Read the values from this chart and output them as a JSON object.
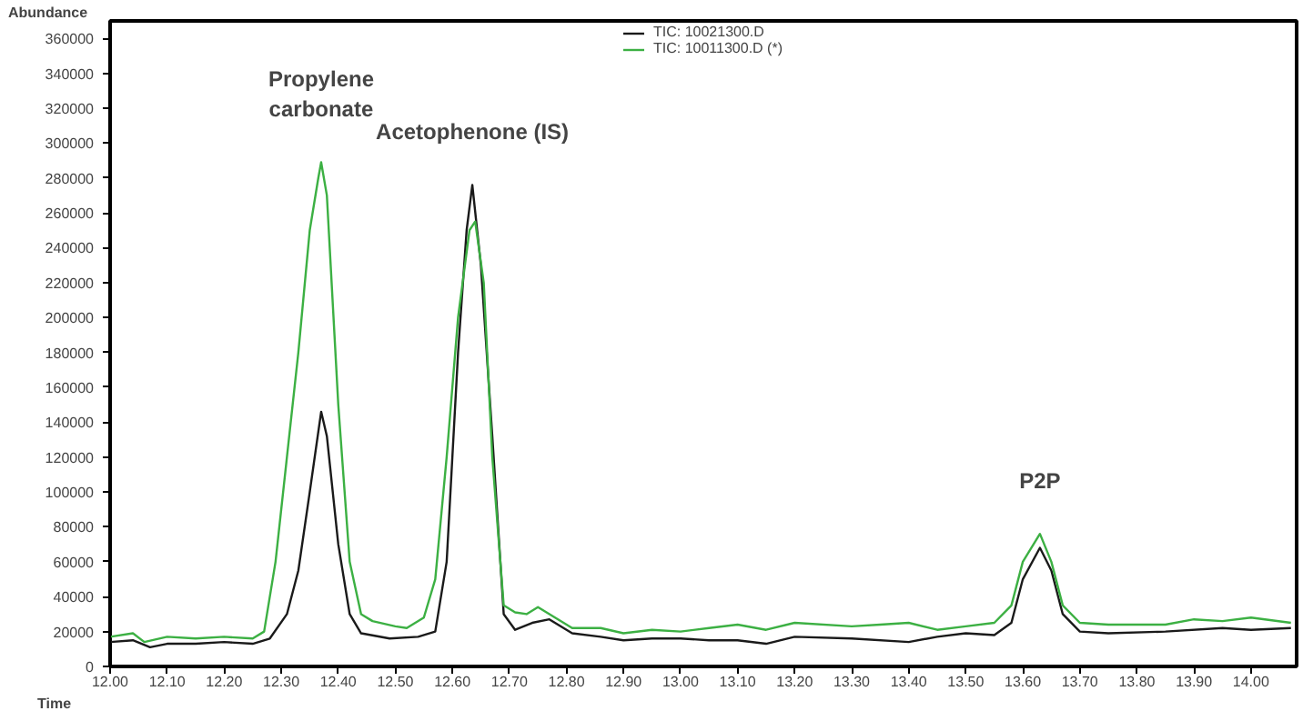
{
  "chart_data": {
    "type": "line",
    "xlabel": "Time",
    "ylabel": "Abundance",
    "xlim": [
      12.0,
      14.08
    ],
    "ylim": [
      0,
      370000
    ],
    "xticks": [
      {
        "value": 12.0,
        "label": "12.00"
      },
      {
        "value": 12.1,
        "label": "12.10"
      },
      {
        "value": 12.2,
        "label": "12.20"
      },
      {
        "value": 12.3,
        "label": "12.30"
      },
      {
        "value": 12.4,
        "label": "12.40"
      },
      {
        "value": 12.5,
        "label": "12.50"
      },
      {
        "value": 12.6,
        "label": "12.60"
      },
      {
        "value": 12.7,
        "label": "12.70"
      },
      {
        "value": 12.8,
        "label": "12.80"
      },
      {
        "value": 12.9,
        "label": "12.90"
      },
      {
        "value": 13.0,
        "label": "13.00"
      },
      {
        "value": 13.1,
        "label": "13.10"
      },
      {
        "value": 13.2,
        "label": "13.20"
      },
      {
        "value": 13.3,
        "label": "13.30"
      },
      {
        "value": 13.4,
        "label": "13.40"
      },
      {
        "value": 13.5,
        "label": "13.50"
      },
      {
        "value": 13.6,
        "label": "13.60"
      },
      {
        "value": 13.7,
        "label": "13.70"
      },
      {
        "value": 13.8,
        "label": "13.80"
      },
      {
        "value": 13.9,
        "label": "13.90"
      },
      {
        "value": 14.0,
        "label": "14.00"
      }
    ],
    "yticks": [
      0,
      20000,
      40000,
      60000,
      80000,
      100000,
      120000,
      140000,
      160000,
      180000,
      200000,
      220000,
      240000,
      260000,
      280000,
      300000,
      320000,
      340000,
      360000
    ],
    "grid": false,
    "legend": "top",
    "marker": "none",
    "line_style": "solid",
    "series": [
      {
        "name": "TIC: 10021300.D",
        "color": "#1a1a1a",
        "x": [
          12.0,
          12.04,
          12.07,
          12.1,
          12.15,
          12.2,
          12.25,
          12.28,
          12.31,
          12.33,
          12.35,
          12.37,
          12.38,
          12.4,
          12.42,
          12.44,
          12.49,
          12.54,
          12.57,
          12.59,
          12.61,
          12.625,
          12.635,
          12.65,
          12.67,
          12.69,
          12.71,
          12.74,
          12.77,
          12.81,
          12.86,
          12.9,
          12.95,
          13.0,
          13.05,
          13.1,
          13.15,
          13.2,
          13.3,
          13.4,
          13.45,
          13.5,
          13.55,
          13.58,
          13.6,
          13.63,
          13.65,
          13.67,
          13.7,
          13.75,
          13.85,
          13.95,
          14.0,
          14.07
        ],
        "values": [
          14000,
          15000,
          11000,
          13000,
          13000,
          14000,
          13000,
          16000,
          30000,
          55000,
          100000,
          146000,
          132000,
          70000,
          30000,
          19000,
          16000,
          17000,
          20000,
          60000,
          180000,
          250000,
          276000,
          230000,
          132000,
          30000,
          21000,
          25000,
          27000,
          19000,
          17000,
          15000,
          16000,
          16000,
          15000,
          15000,
          13000,
          17000,
          16000,
          14000,
          17000,
          19000,
          18000,
          25000,
          50000,
          68000,
          55000,
          30000,
          20000,
          19000,
          20000,
          22000,
          21000,
          22000
        ]
      },
      {
        "name": "TIC: 10011300.D (*)",
        "color": "#3cb043",
        "x": [
          12.0,
          12.04,
          12.06,
          12.1,
          12.15,
          12.2,
          12.25,
          12.27,
          12.29,
          12.31,
          12.33,
          12.35,
          12.365,
          12.37,
          12.38,
          12.4,
          12.42,
          12.44,
          12.46,
          12.5,
          12.52,
          12.55,
          12.57,
          12.59,
          12.61,
          12.63,
          12.64,
          12.655,
          12.67,
          12.69,
          12.71,
          12.73,
          12.75,
          12.78,
          12.81,
          12.86,
          12.9,
          12.95,
          13.0,
          13.05,
          13.1,
          13.15,
          13.2,
          13.3,
          13.35,
          13.4,
          13.45,
          13.5,
          13.55,
          13.58,
          13.6,
          13.63,
          13.65,
          13.67,
          13.7,
          13.75,
          13.85,
          13.9,
          13.95,
          14.0,
          14.07
        ],
        "values": [
          17000,
          19000,
          14000,
          17000,
          16000,
          17000,
          16000,
          20000,
          60000,
          120000,
          180000,
          250000,
          280000,
          289000,
          270000,
          150000,
          60000,
          30000,
          26000,
          23000,
          22000,
          28000,
          50000,
          120000,
          200000,
          250000,
          255000,
          220000,
          120000,
          35000,
          31000,
          30000,
          34000,
          28000,
          22000,
          22000,
          19000,
          21000,
          20000,
          22000,
          24000,
          21000,
          25000,
          23000,
          24000,
          25000,
          21000,
          23000,
          25000,
          35000,
          60000,
          76000,
          60000,
          35000,
          25000,
          24000,
          24000,
          27000,
          26000,
          28000,
          25000
        ]
      }
    ],
    "annotations": [
      {
        "text": "Propylene\ncarbonate",
        "x": 12.37,
        "y": 289000
      },
      {
        "text": "Acetophenone (IS)",
        "x": 12.635,
        "y": 276000
      },
      {
        "text": "P2P",
        "x": 13.63,
        "y": 76000
      }
    ]
  }
}
